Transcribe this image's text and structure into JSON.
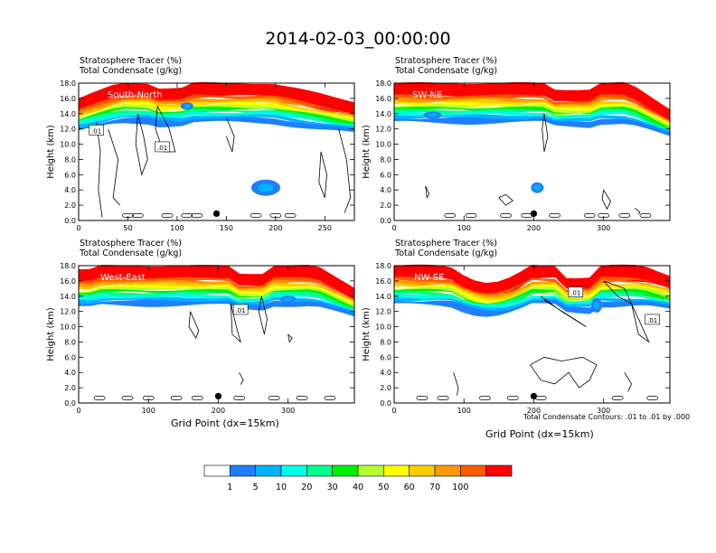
{
  "page_title": "2014-02-03_00:00:00",
  "xlabel": "Grid Point (dx=15km)",
  "contour_note": "Total Condensate Contours: .01 to .01 by .000",
  "colorbar": {
    "levels": [
      "1",
      "5",
      "10",
      "20",
      "30",
      "40",
      "50",
      "60",
      "70",
      "100"
    ],
    "colors": [
      "#ffffff",
      "#1f7fff",
      "#00b3ff",
      "#00ffe6",
      "#00ff8c",
      "#00f000",
      "#b6ff33",
      "#ffff00",
      "#ffcc00",
      "#ff9900",
      "#ff5a00",
      "#ff0000"
    ]
  },
  "chart_data": [
    {
      "type": "heatmap",
      "title_line1": "Stratosphere Tracer   (%)",
      "title_line2": "Total Condensate   (g/kg)",
      "label": "South-North",
      "ylabel": "Height (km)",
      "xlim": [
        0,
        280
      ],
      "ylim": [
        0,
        18
      ],
      "xticks": [
        "0",
        "50",
        "100",
        "150",
        "200",
        "250"
      ],
      "yticks": [
        "0.0",
        "2.0",
        "4.0",
        "6.0",
        "8.0",
        "10.0",
        "12.0",
        "14.0",
        "16.0",
        "18.0"
      ],
      "contour_labels": [
        ".01",
        ".01"
      ],
      "marker_x": 140
    },
    {
      "type": "heatmap",
      "title_line1": "Stratosphere Tracer   (%)",
      "title_line2": "Total Condensate   (g/kg)",
      "label": "SW-NE",
      "ylabel": "Height (km)",
      "xlim": [
        0,
        395
      ],
      "ylim": [
        0,
        18
      ],
      "xticks": [
        "0",
        "100",
        "200",
        "300"
      ],
      "yticks": [
        "0.0",
        "2.0",
        "4.0",
        "6.0",
        "8.0",
        "10.0",
        "12.0",
        "14.0",
        "16.0",
        "18.0"
      ],
      "contour_labels": [],
      "marker_x": 200
    },
    {
      "type": "heatmap",
      "title_line1": "Stratosphere Tracer   (%)",
      "title_line2": "Total Condensate   (g/kg)",
      "label": "West-East",
      "ylabel": "Height (km)",
      "xlim": [
        0,
        395
      ],
      "ylim": [
        0,
        18
      ],
      "xticks": [
        "0",
        "100",
        "200",
        "300"
      ],
      "yticks": [
        "0.0",
        "2.0",
        "4.0",
        "6.0",
        "8.0",
        "10.0",
        "12.0",
        "14.0",
        "16.0",
        "18.0"
      ],
      "contour_labels": [
        ".01"
      ],
      "marker_x": 200
    },
    {
      "type": "heatmap",
      "title_line1": "Stratosphere Tracer   (%)",
      "title_line2": "Total Condensate   (g/kg)",
      "label": "NW-SE",
      "ylabel": "Height (km)",
      "xlim": [
        0,
        395
      ],
      "ylim": [
        0,
        18
      ],
      "xticks": [
        "0",
        "100",
        "200",
        "300"
      ],
      "yticks": [
        "0.0",
        "2.0",
        "4.0",
        "6.0",
        "8.0",
        "10.0",
        "12.0",
        "14.0",
        "16.0",
        "18.0"
      ],
      "contour_labels": [
        ".01",
        ".01"
      ],
      "marker_x": 200
    }
  ]
}
